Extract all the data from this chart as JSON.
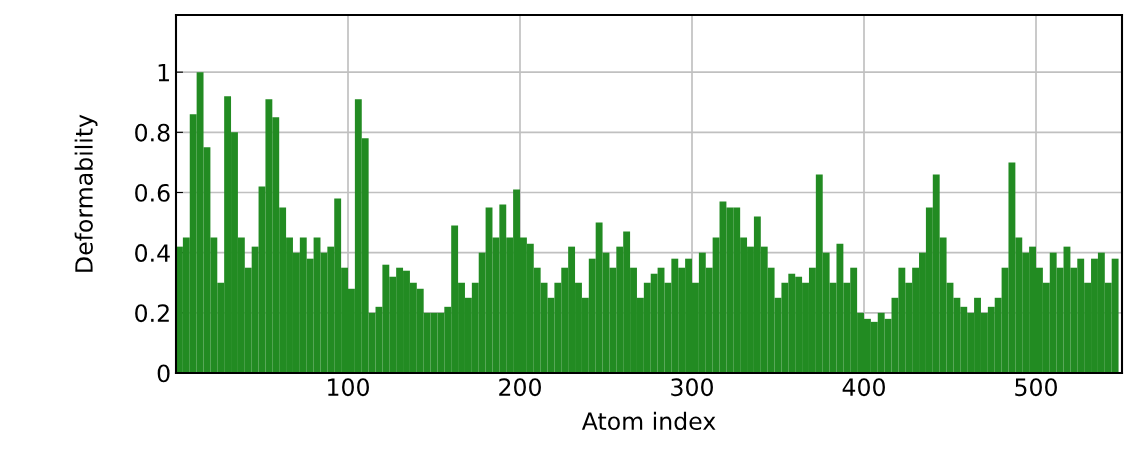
{
  "chart_data": {
    "type": "bar",
    "xlabel": "Atom index",
    "ylabel": "Deformability",
    "color": "#228b22",
    "x": [
      2,
      6,
      10,
      14,
      18,
      22,
      26,
      30,
      34,
      38,
      42,
      46,
      50,
      54,
      58,
      62,
      66,
      70,
      74,
      78,
      82,
      86,
      90,
      94,
      98,
      102,
      106,
      110,
      114,
      118,
      122,
      126,
      130,
      134,
      138,
      142,
      146,
      150,
      154,
      158,
      162,
      166,
      170,
      174,
      178,
      182,
      186,
      190,
      194,
      198,
      202,
      206,
      210,
      214,
      218,
      222,
      226,
      230,
      234,
      238,
      242,
      246,
      250,
      254,
      258,
      262,
      266,
      270,
      274,
      278,
      282,
      286,
      290,
      294,
      298,
      302,
      306,
      310,
      314,
      318,
      322,
      326,
      330,
      334,
      338,
      342,
      346,
      350,
      354,
      358,
      362,
      366,
      370,
      374,
      378,
      382,
      386,
      390,
      394,
      398,
      402,
      406,
      410,
      414,
      418,
      422,
      426,
      430,
      434,
      438,
      442,
      446,
      450,
      454,
      458,
      462,
      466,
      470,
      474,
      478,
      482,
      486,
      490,
      494,
      498,
      502,
      506,
      510,
      514,
      518,
      522,
      526,
      530,
      534,
      538,
      542,
      546
    ],
    "values": [
      0.42,
      0.45,
      0.86,
      1.0,
      0.75,
      0.45,
      0.3,
      0.92,
      0.8,
      0.45,
      0.35,
      0.42,
      0.62,
      0.91,
      0.85,
      0.55,
      0.45,
      0.4,
      0.45,
      0.38,
      0.45,
      0.4,
      0.42,
      0.58,
      0.35,
      0.28,
      0.91,
      0.78,
      0.2,
      0.22,
      0.36,
      0.32,
      0.35,
      0.34,
      0.3,
      0.28,
      0.2,
      0.2,
      0.2,
      0.22,
      0.49,
      0.3,
      0.25,
      0.3,
      0.4,
      0.55,
      0.45,
      0.56,
      0.45,
      0.61,
      0.45,
      0.43,
      0.35,
      0.3,
      0.25,
      0.3,
      0.35,
      0.42,
      0.3,
      0.25,
      0.38,
      0.5,
      0.4,
      0.35,
      0.42,
      0.47,
      0.35,
      0.25,
      0.3,
      0.33,
      0.35,
      0.3,
      0.38,
      0.35,
      0.38,
      0.3,
      0.4,
      0.35,
      0.45,
      0.57,
      0.55,
      0.55,
      0.45,
      0.42,
      0.52,
      0.42,
      0.35,
      0.25,
      0.3,
      0.33,
      0.32,
      0.3,
      0.35,
      0.66,
      0.4,
      0.3,
      0.43,
      0.3,
      0.35,
      0.2,
      0.18,
      0.17,
      0.2,
      0.18,
      0.25,
      0.35,
      0.3,
      0.35,
      0.4,
      0.55,
      0.66,
      0.45,
      0.3,
      0.25,
      0.22,
      0.2,
      0.25,
      0.2,
      0.22,
      0.25,
      0.35,
      0.7,
      0.45,
      0.4,
      0.42,
      0.35,
      0.3,
      0.4,
      0.35,
      0.42,
      0.35,
      0.38,
      0.3,
      0.38,
      0.4,
      0.3,
      0.38
    ],
    "xlim": [
      0,
      550
    ],
    "xticks": [
      100,
      200,
      300,
      400,
      500
    ],
    "ylim": [
      0,
      1.19
    ],
    "yticks": [
      0,
      0.2,
      0.4,
      0.6,
      0.8,
      1
    ],
    "grid": true
  }
}
